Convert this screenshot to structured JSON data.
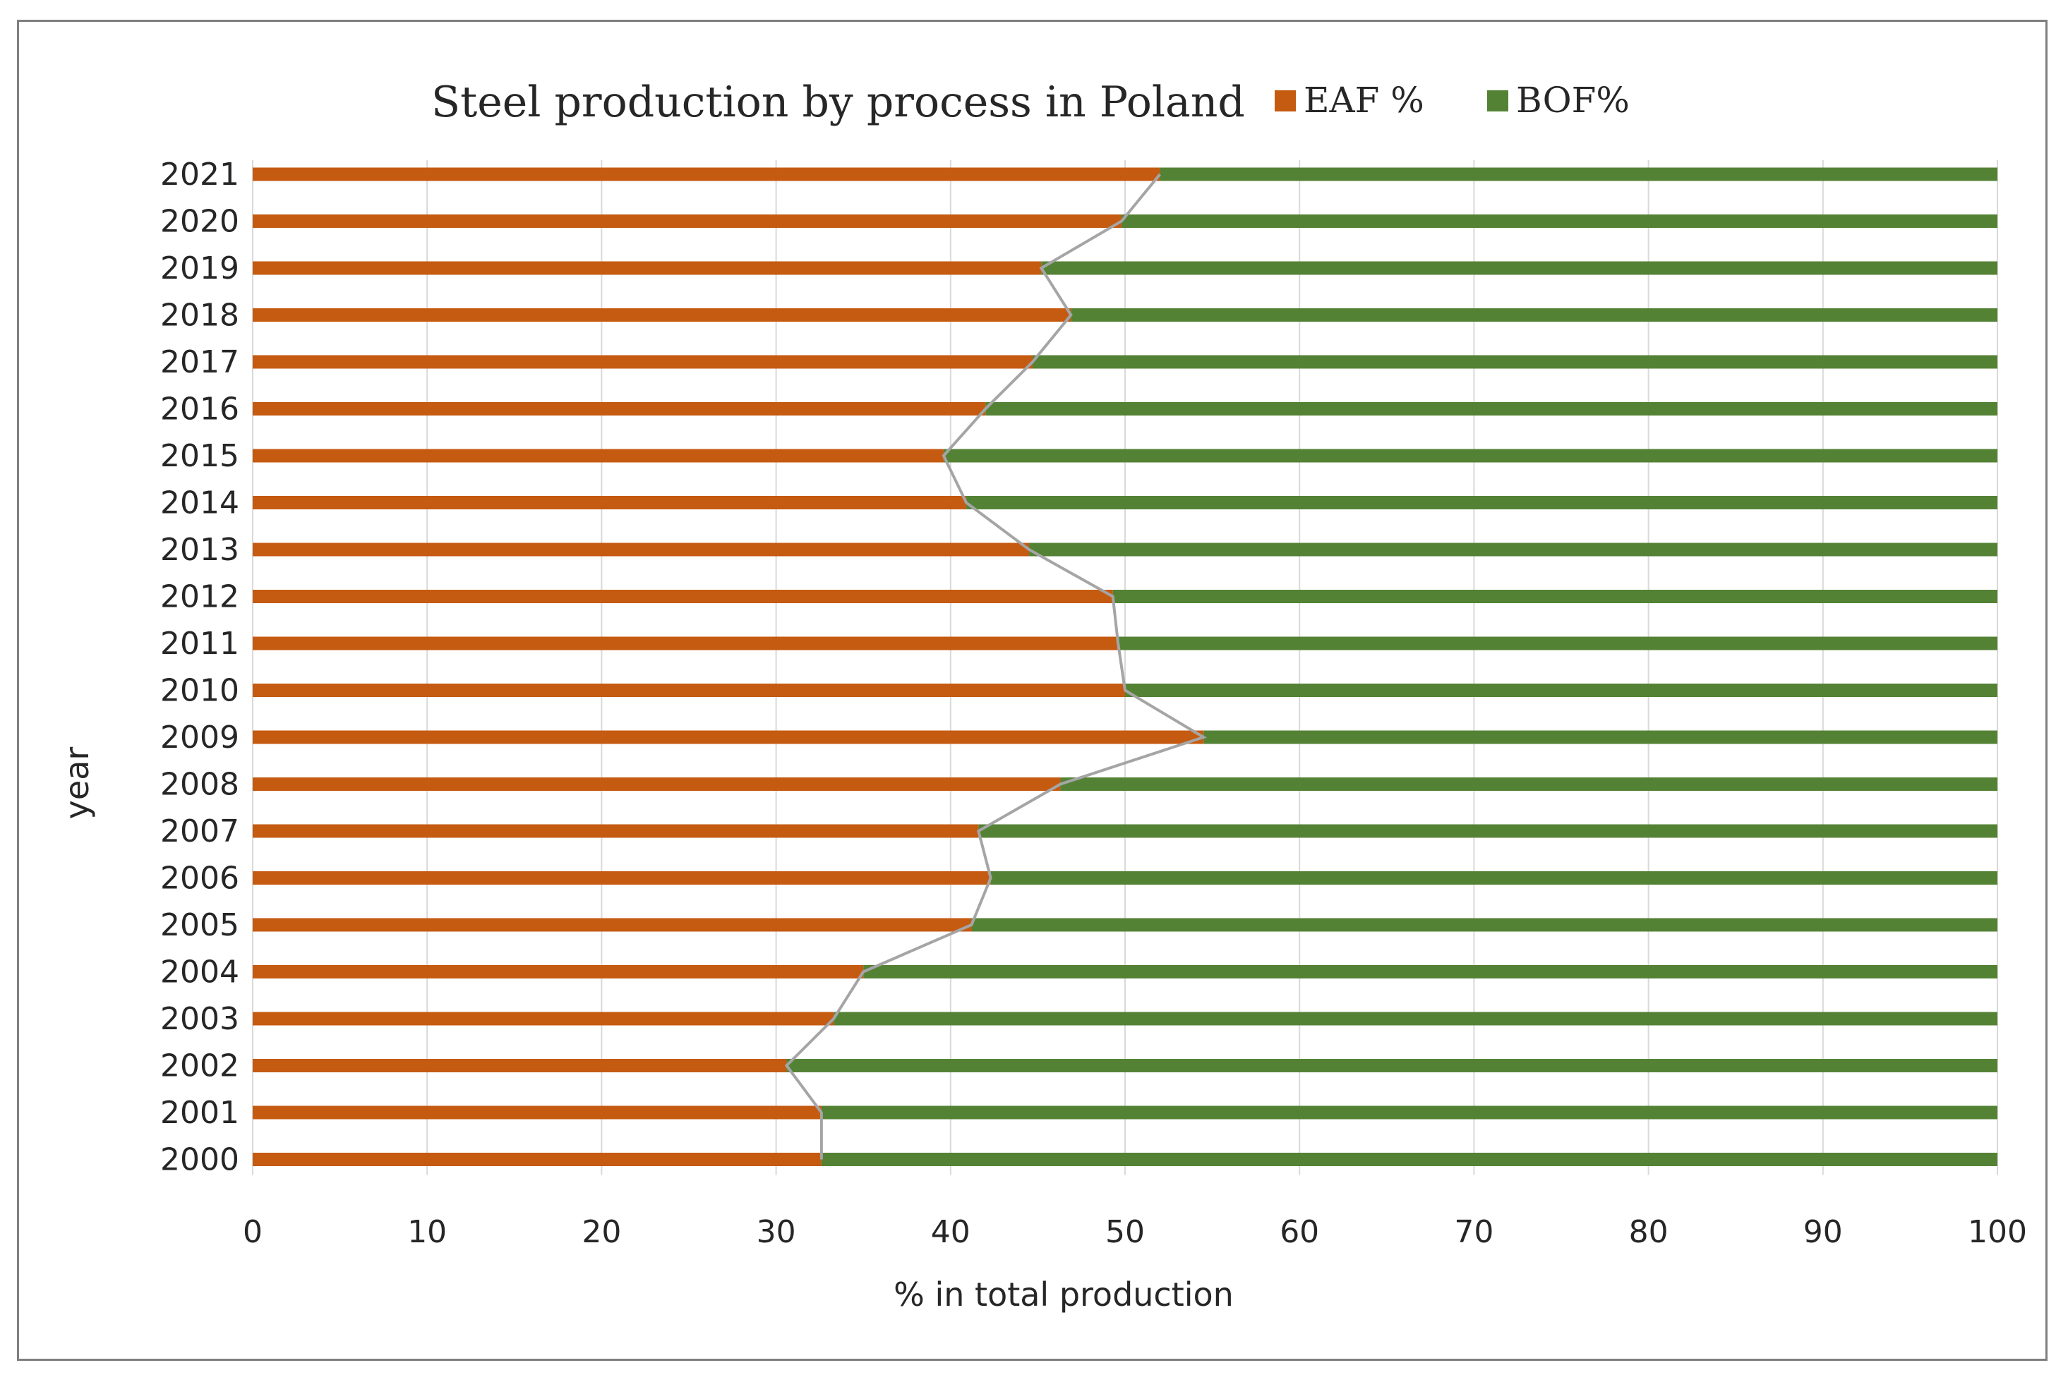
{
  "chart_data": {
    "type": "bar",
    "orientation": "horizontal",
    "stacked": true,
    "title": "Steel production by process in Poland",
    "xlabel": "% in total production",
    "ylabel": "year",
    "xlim": [
      0,
      100
    ],
    "xticks": [
      "0",
      "10",
      "20",
      "30",
      "40",
      "50",
      "60",
      "70",
      "80",
      "90",
      "100"
    ],
    "categories": [
      "2021",
      "2020",
      "2019",
      "2018",
      "2017",
      "2016",
      "2015",
      "2014",
      "2013",
      "2012",
      "2011",
      "2010",
      "2009",
      "2008",
      "2007",
      "2006",
      "2005",
      "2004",
      "2003",
      "2002",
      "2001",
      "2000"
    ],
    "series": [
      {
        "name": "EAF %",
        "color": "#c55a11",
        "values": [
          52.0,
          49.8,
          45.2,
          46.9,
          44.7,
          42.0,
          39.6,
          40.9,
          44.5,
          49.3,
          49.6,
          50.0,
          54.5,
          46.3,
          41.6,
          42.3,
          41.2,
          35.0,
          33.3,
          30.6,
          32.6,
          32.6
        ]
      },
      {
        "name": "BOF%",
        "color": "#548235",
        "values": [
          48.0,
          50.2,
          54.8,
          53.1,
          55.3,
          58.0,
          60.4,
          59.1,
          55.5,
          50.7,
          50.4,
          50.0,
          45.5,
          53.7,
          58.4,
          57.7,
          58.8,
          65.0,
          66.7,
          69.4,
          67.4,
          67.4
        ]
      }
    ],
    "series_line_color": "#a5a5a5",
    "legend": "top-right"
  }
}
